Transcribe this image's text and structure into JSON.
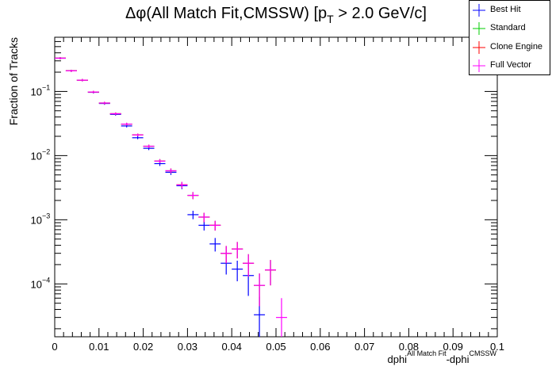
{
  "chart_data": {
    "type": "scatter",
    "title": {
      "prefix": "Δφ(All Match Fit,CMSSW) [p",
      "subscript": "T",
      "suffix": " > 2.0 GeV/c]"
    },
    "ylabel": "Fraction of Tracks",
    "xlabel": {
      "part1": "dphi",
      "sup1": "All Match Fit",
      "part2": "-dphi",
      "sup2": "CMSSW"
    },
    "xlim": [
      0,
      0.1
    ],
    "ylim_log": [
      1.5e-05,
      0.7
    ],
    "yscale": "log",
    "x_ticks": [
      "0",
      "0.01",
      "0.02",
      "0.03",
      "0.04",
      "0.05",
      "0.06",
      "0.07",
      "0.08",
      "0.09",
      "0.1"
    ],
    "y_ticks": [
      {
        "base": "10",
        "exp": "−1",
        "value": 0.1
      },
      {
        "base": "10",
        "exp": "−2",
        "value": 0.01
      },
      {
        "base": "10",
        "exp": "−3",
        "value": 0.001
      },
      {
        "base": "10",
        "exp": "−4",
        "value": 0.0001
      }
    ],
    "bin_width": 0.0025,
    "series": [
      {
        "name": "Best Hit",
        "color": "#0000ff",
        "points": [
          {
            "x": 0.00125,
            "y": 0.33,
            "err": 0.012
          },
          {
            "x": 0.00375,
            "y": 0.21,
            "err": 0.008
          },
          {
            "x": 0.00625,
            "y": 0.15,
            "err": 0.006
          },
          {
            "x": 0.00875,
            "y": 0.097,
            "err": 0.004
          },
          {
            "x": 0.01125,
            "y": 0.065,
            "err": 0.003
          },
          {
            "x": 0.01375,
            "y": 0.044,
            "err": 0.002
          },
          {
            "x": 0.01625,
            "y": 0.029,
            "err": 0.0015
          },
          {
            "x": 0.01875,
            "y": 0.019,
            "err": 0.001
          },
          {
            "x": 0.02125,
            "y": 0.013,
            "err": 0.0008
          },
          {
            "x": 0.02375,
            "y": 0.0075,
            "err": 0.0006
          },
          {
            "x": 0.02625,
            "y": 0.0055,
            "err": 0.0005
          },
          {
            "x": 0.02875,
            "y": 0.0034,
            "err": 0.0004
          },
          {
            "x": 0.03125,
            "y": 0.0012,
            "err": 0.00018
          },
          {
            "x": 0.03375,
            "y": 0.00082,
            "err": 0.00014
          },
          {
            "x": 0.03625,
            "y": 0.00042,
            "err": 0.0001
          },
          {
            "x": 0.03875,
            "y": 0.00021,
            "err": 7e-05
          },
          {
            "x": 0.04125,
            "y": 0.00017,
            "err": 6e-05
          },
          {
            "x": 0.04375,
            "y": 0.000135,
            "err": 7e-05
          },
          {
            "x": 0.04625,
            "y": 3.3e-05,
            "err": 3e-05
          }
        ]
      },
      {
        "name": "Standard",
        "color": "#00cc00",
        "points": [
          {
            "x": 0.00125,
            "y": 0.33,
            "err": 0.012
          },
          {
            "x": 0.00375,
            "y": 0.21,
            "err": 0.008
          },
          {
            "x": 0.00625,
            "y": 0.15,
            "err": 0.006
          },
          {
            "x": 0.00875,
            "y": 0.098,
            "err": 0.004
          },
          {
            "x": 0.01125,
            "y": 0.066,
            "err": 0.003
          },
          {
            "x": 0.01375,
            "y": 0.045,
            "err": 0.002
          },
          {
            "x": 0.01625,
            "y": 0.031,
            "err": 0.0015
          },
          {
            "x": 0.01875,
            "y": 0.021,
            "err": 0.001
          },
          {
            "x": 0.02125,
            "y": 0.014,
            "err": 0.0008
          },
          {
            "x": 0.02375,
            "y": 0.0082,
            "err": 0.0006
          },
          {
            "x": 0.02625,
            "y": 0.0058,
            "err": 0.0005
          },
          {
            "x": 0.02875,
            "y": 0.0035,
            "err": 0.0004
          },
          {
            "x": 0.03125,
            "y": 0.0024,
            "err": 0.0003
          },
          {
            "x": 0.03375,
            "y": 0.0011,
            "err": 0.00018
          },
          {
            "x": 0.03625,
            "y": 0.00082,
            "err": 0.00014
          },
          {
            "x": 0.03875,
            "y": 0.0003,
            "err": 9e-05
          },
          {
            "x": 0.04125,
            "y": 0.00035,
            "err": 0.0001
          },
          {
            "x": 0.04375,
            "y": 0.00021,
            "err": 8e-05
          },
          {
            "x": 0.04625,
            "y": 9.5e-05,
            "err": 5e-05
          },
          {
            "x": 0.04875,
            "y": 0.000165,
            "err": 7e-05
          }
        ]
      },
      {
        "name": "Clone Engine",
        "color": "#ff0000",
        "points": [
          {
            "x": 0.00125,
            "y": 0.33,
            "err": 0.012
          },
          {
            "x": 0.00375,
            "y": 0.21,
            "err": 0.008
          },
          {
            "x": 0.00625,
            "y": 0.15,
            "err": 0.006
          },
          {
            "x": 0.00875,
            "y": 0.098,
            "err": 0.004
          },
          {
            "x": 0.01125,
            "y": 0.066,
            "err": 0.003
          },
          {
            "x": 0.01375,
            "y": 0.045,
            "err": 0.002
          },
          {
            "x": 0.01625,
            "y": 0.031,
            "err": 0.0015
          },
          {
            "x": 0.01875,
            "y": 0.021,
            "err": 0.001
          },
          {
            "x": 0.02125,
            "y": 0.014,
            "err": 0.0008
          },
          {
            "x": 0.02375,
            "y": 0.0082,
            "err": 0.0006
          },
          {
            "x": 0.02625,
            "y": 0.0058,
            "err": 0.0005
          },
          {
            "x": 0.02875,
            "y": 0.0035,
            "err": 0.0004
          },
          {
            "x": 0.03125,
            "y": 0.0024,
            "err": 0.0003
          },
          {
            "x": 0.03375,
            "y": 0.0011,
            "err": 0.00018
          },
          {
            "x": 0.03625,
            "y": 0.00082,
            "err": 0.00014
          },
          {
            "x": 0.03875,
            "y": 0.0003,
            "err": 9e-05
          },
          {
            "x": 0.04125,
            "y": 0.00035,
            "err": 0.0001
          },
          {
            "x": 0.04375,
            "y": 0.00021,
            "err": 8e-05
          },
          {
            "x": 0.04625,
            "y": 9.5e-05,
            "err": 5e-05
          },
          {
            "x": 0.04875,
            "y": 0.000165,
            "err": 7e-05
          }
        ]
      },
      {
        "name": "Full Vector",
        "color": "#ff00ff",
        "points": [
          {
            "x": 0.00125,
            "y": 0.33,
            "err": 0.012
          },
          {
            "x": 0.00375,
            "y": 0.21,
            "err": 0.008
          },
          {
            "x": 0.00625,
            "y": 0.15,
            "err": 0.006
          },
          {
            "x": 0.00875,
            "y": 0.098,
            "err": 0.004
          },
          {
            "x": 0.01125,
            "y": 0.066,
            "err": 0.003
          },
          {
            "x": 0.01375,
            "y": 0.045,
            "err": 0.002
          },
          {
            "x": 0.01625,
            "y": 0.031,
            "err": 0.0015
          },
          {
            "x": 0.01875,
            "y": 0.021,
            "err": 0.001
          },
          {
            "x": 0.02125,
            "y": 0.014,
            "err": 0.0008
          },
          {
            "x": 0.02375,
            "y": 0.0082,
            "err": 0.0006
          },
          {
            "x": 0.02625,
            "y": 0.0058,
            "err": 0.0005
          },
          {
            "x": 0.02875,
            "y": 0.0035,
            "err": 0.0004
          },
          {
            "x": 0.03125,
            "y": 0.0024,
            "err": 0.0003
          },
          {
            "x": 0.03375,
            "y": 0.0011,
            "err": 0.00018
          },
          {
            "x": 0.03625,
            "y": 0.00082,
            "err": 0.00014
          },
          {
            "x": 0.03875,
            "y": 0.0003,
            "err": 9e-05
          },
          {
            "x": 0.04125,
            "y": 0.00035,
            "err": 0.0001
          },
          {
            "x": 0.04375,
            "y": 0.00021,
            "err": 8e-05
          },
          {
            "x": 0.04625,
            "y": 9.5e-05,
            "err": 5e-05
          },
          {
            "x": 0.04875,
            "y": 0.000165,
            "err": 7e-05
          },
          {
            "x": 0.05125,
            "y": 3e-05,
            "err": 3e-05
          }
        ]
      }
    ],
    "legend": {
      "placement": "top-right",
      "entries": [
        {
          "label": "Best Hit",
          "color": "#0000ff"
        },
        {
          "label": "Standard",
          "color": "#00cc00"
        },
        {
          "label": "Clone Engine",
          "color": "#ff0000"
        },
        {
          "label": "Full Vector",
          "color": "#ff00ff"
        }
      ]
    }
  }
}
